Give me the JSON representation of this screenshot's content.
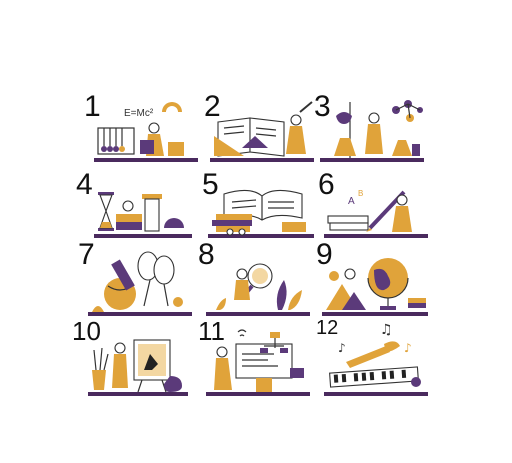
{
  "tiles": [
    {
      "number": "1",
      "icon": "physics-newtons-cradle-magnet-icon",
      "text": "E=Mc²"
    },
    {
      "number": "2",
      "icon": "mathematics-geometry-book-icon"
    },
    {
      "number": "3",
      "icon": "chemistry-lab-molecule-icon"
    },
    {
      "number": "4",
      "icon": "history-hourglass-column-icon"
    },
    {
      "number": "5",
      "icon": "literature-open-book-stack-icon"
    },
    {
      "number": "6",
      "icon": "language-writing-pen-icon"
    },
    {
      "number": "7",
      "icon": "sports-rackets-balls-icon"
    },
    {
      "number": "8",
      "icon": "biology-magnifier-plants-icon"
    },
    {
      "number": "9",
      "icon": "geography-globe-mountains-icon"
    },
    {
      "number": "10",
      "icon": "art-painting-easel-icon"
    },
    {
      "number": "11",
      "icon": "computer-science-monitor-flowchart-icon"
    },
    {
      "number": "12",
      "icon": "music-keyboard-trumpet-notes-icon"
    }
  ],
  "colors": {
    "orange": "#e0a33a",
    "purple": "#5b3a7a",
    "ground": "#4a2a5e"
  }
}
